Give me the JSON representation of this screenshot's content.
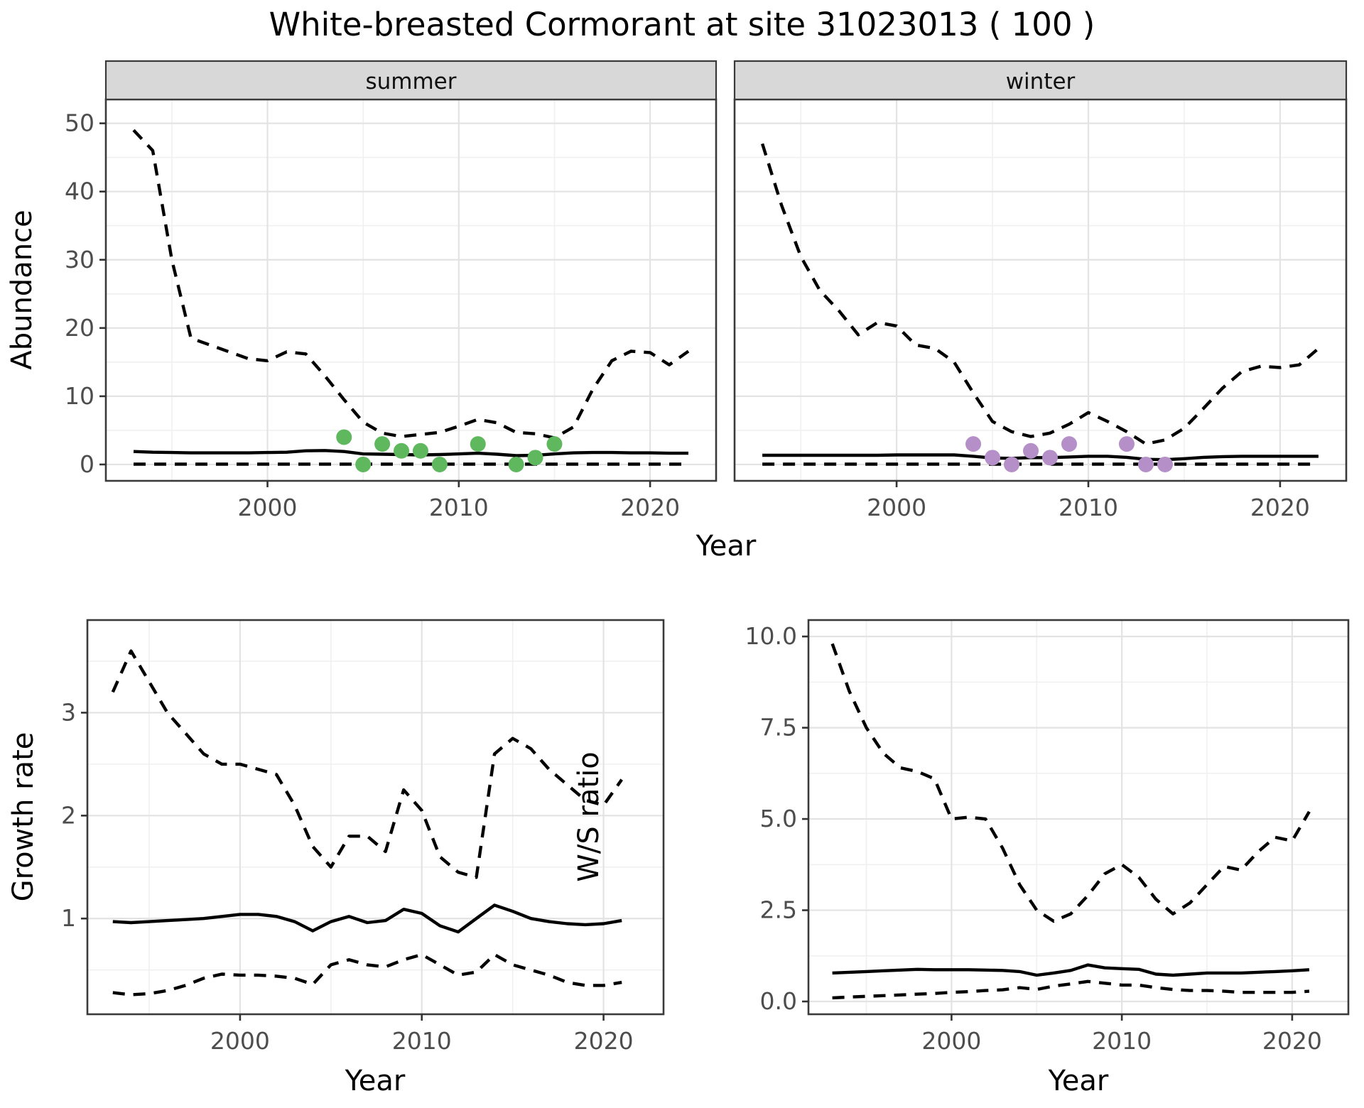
{
  "title": "White-breasted Cormorant at site 31023013 ( 100 )",
  "colors": {
    "summer_points": "#5FB75E",
    "winter_points": "#B48FC8",
    "line": "#000000",
    "grid_major": "#E3E3E3",
    "grid_minor": "#F0F0F0",
    "panel_border": "#3A3A3A",
    "strip_fill": "#D8D8D8",
    "tick_text": "#4D4D4D",
    "axis_title_text": "#000000"
  },
  "chart_data": [
    {
      "id": "abundance-summer",
      "type": "line",
      "facet_label": "summer",
      "ylabel": "Abundance",
      "xlabel": "Year",
      "legend_position": "none",
      "grid": "on",
      "xlim": [
        1991.55,
        2023.45
      ],
      "ylim": [
        -2.4,
        53.5
      ],
      "x_ticks": {
        "values": [
          2000,
          2010,
          2020
        ],
        "labels": [
          "2000",
          "2010",
          "2020"
        ]
      },
      "x_minor": [
        1995,
        2005,
        2015
      ],
      "y_ticks": {
        "values": [
          0,
          10,
          20,
          30,
          40,
          50
        ],
        "labels": [
          "0",
          "10",
          "20",
          "30",
          "40",
          "50"
        ]
      },
      "y_minor": [
        5,
        15,
        25,
        35,
        45
      ],
      "x": [
        1993,
        1994,
        1995,
        1996,
        1997,
        1998,
        1999,
        2000,
        2001,
        2002,
        2003,
        2004,
        2005,
        2006,
        2007,
        2008,
        2009,
        2010,
        2011,
        2012,
        2013,
        2014,
        2015,
        2016,
        2017,
        2018,
        2019,
        2020,
        2021,
        2022
      ],
      "series": [
        {
          "name": "upper-95ci",
          "style": "dashed",
          "values": [
            49,
            46,
            30,
            18.5,
            17.5,
            16.5,
            15.5,
            15.2,
            16.5,
            16.2,
            13,
            9.5,
            6.2,
            4.6,
            4.1,
            4.4,
            4.7,
            5.6,
            6.6,
            6.1,
            4.7,
            4.5,
            3.9,
            5.5,
            11,
            15.2,
            16.6,
            16.4,
            14.6,
            16.6
          ]
        },
        {
          "name": "mean",
          "style": "solid",
          "values": [
            1.9,
            1.8,
            1.75,
            1.7,
            1.7,
            1.7,
            1.7,
            1.75,
            1.8,
            2.0,
            2.05,
            1.9,
            1.55,
            1.5,
            1.45,
            1.4,
            1.45,
            1.55,
            1.65,
            1.5,
            1.3,
            1.35,
            1.55,
            1.7,
            1.75,
            1.75,
            1.7,
            1.7,
            1.65,
            1.65
          ]
        },
        {
          "name": "lower-95ci",
          "style": "dashed",
          "values": [
            0.05,
            0.05,
            0.05,
            0.05,
            0.05,
            0.05,
            0.05,
            0.05,
            0.05,
            0.05,
            0.05,
            0.05,
            0.05,
            0.05,
            0.05,
            0.05,
            0.05,
            0.05,
            0.05,
            0.05,
            0.05,
            0.05,
            0.05,
            0.05,
            0.05,
            0.05,
            0.05,
            0.05,
            0.05,
            0.05
          ]
        }
      ],
      "points": {
        "name": "observed-counts-summer",
        "color_key": "summer_points",
        "x": [
          2004,
          2005,
          2006,
          2007,
          2008,
          2009,
          2011,
          2013,
          2014,
          2015
        ],
        "y": [
          4,
          0,
          3,
          2,
          2,
          0,
          3,
          0,
          1,
          3
        ]
      }
    },
    {
      "id": "abundance-winter",
      "type": "line",
      "facet_label": "winter",
      "ylabel": "Abundance",
      "xlabel": "Year",
      "legend_position": "none",
      "grid": "on",
      "xlim": [
        1991.55,
        2023.45
      ],
      "ylim": [
        -2.4,
        53.5
      ],
      "x_ticks": {
        "values": [
          2000,
          2010,
          2020
        ],
        "labels": [
          "2000",
          "2010",
          "2020"
        ]
      },
      "x_minor": [
        1995,
        2005,
        2015
      ],
      "y_ticks": {
        "values": [
          0,
          10,
          20,
          30,
          40,
          50
        ],
        "labels": [
          "0",
          "10",
          "20",
          "30",
          "40",
          "50"
        ]
      },
      "y_minor": [
        5,
        15,
        25,
        35,
        45
      ],
      "x": [
        1993,
        1994,
        1995,
        1996,
        1997,
        1998,
        1999,
        2000,
        2001,
        2002,
        2003,
        2004,
        2005,
        2006,
        2007,
        2008,
        2009,
        2010,
        2011,
        2012,
        2013,
        2014,
        2015,
        2016,
        2017,
        2018,
        2019,
        2020,
        2021,
        2022
      ],
      "series": [
        {
          "name": "upper-95ci",
          "style": "dashed",
          "values": [
            47,
            38,
            30.5,
            25.5,
            22.5,
            19,
            20.8,
            20.3,
            17.5,
            17,
            15,
            10.5,
            6.3,
            4.8,
            4.1,
            4.6,
            5.9,
            7.6,
            6.3,
            4.8,
            3.0,
            3.6,
            5.3,
            8.2,
            11.2,
            13.6,
            14.4,
            14.2,
            14.6,
            17.0
          ]
        },
        {
          "name": "mean",
          "style": "solid",
          "values": [
            1.35,
            1.35,
            1.35,
            1.35,
            1.35,
            1.35,
            1.35,
            1.4,
            1.4,
            1.4,
            1.4,
            1.2,
            0.95,
            0.9,
            1.0,
            1.0,
            1.1,
            1.2,
            1.2,
            1.05,
            0.75,
            0.7,
            0.85,
            1.05,
            1.15,
            1.2,
            1.2,
            1.2,
            1.2,
            1.2
          ]
        },
        {
          "name": "lower-95ci",
          "style": "dashed",
          "values": [
            0.05,
            0.05,
            0.05,
            0.05,
            0.05,
            0.05,
            0.05,
            0.05,
            0.05,
            0.05,
            0.05,
            0.05,
            0.05,
            0.05,
            0.05,
            0.05,
            0.05,
            0.05,
            0.05,
            0.05,
            0.05,
            0.05,
            0.05,
            0.05,
            0.05,
            0.05,
            0.05,
            0.05,
            0.05,
            0.05
          ]
        }
      ],
      "points": {
        "name": "observed-counts-winter",
        "color_key": "winter_points",
        "x": [
          2004,
          2005,
          2006,
          2007,
          2008,
          2009,
          2012,
          2013,
          2014
        ],
        "y": [
          3,
          1,
          0,
          2,
          1,
          3,
          3,
          0,
          0
        ]
      }
    },
    {
      "id": "growth-rate",
      "type": "line",
      "facet_label": null,
      "ylabel": "Growth rate",
      "xlabel": "Year",
      "legend_position": "none",
      "grid": "on",
      "xlim": [
        1991.6,
        2023.3
      ],
      "ylim": [
        0.07,
        3.9
      ],
      "x_ticks": {
        "values": [
          2000,
          2010,
          2020
        ],
        "labels": [
          "2000",
          "2010",
          "2020"
        ]
      },
      "x_minor": [
        1995,
        2005,
        2015
      ],
      "y_ticks": {
        "values": [
          1,
          2,
          3
        ],
        "labels": [
          "1",
          "2",
          "3"
        ]
      },
      "y_minor": [
        0.5,
        1.5,
        2.5,
        3.5
      ],
      "x": [
        1993,
        1994,
        1995,
        1996,
        1997,
        1998,
        1999,
        2000,
        2001,
        2002,
        2003,
        2004,
        2005,
        2006,
        2007,
        2008,
        2009,
        2010,
        2011,
        2012,
        2013,
        2014,
        2015,
        2016,
        2017,
        2018,
        2019,
        2020,
        2021
      ],
      "series": [
        {
          "name": "upper-95ci",
          "style": "dashed",
          "values": [
            3.2,
            3.6,
            3.3,
            3.0,
            2.8,
            2.6,
            2.5,
            2.5,
            2.45,
            2.4,
            2.1,
            1.7,
            1.5,
            1.8,
            1.8,
            1.65,
            2.25,
            2.05,
            1.6,
            1.45,
            1.4,
            2.6,
            2.75,
            2.65,
            2.45,
            2.3,
            2.15,
            2.1,
            2.35
          ]
        },
        {
          "name": "mean",
          "style": "solid",
          "values": [
            0.97,
            0.96,
            0.97,
            0.98,
            0.99,
            1.0,
            1.02,
            1.04,
            1.04,
            1.02,
            0.97,
            0.88,
            0.97,
            1.02,
            0.96,
            0.98,
            1.09,
            1.05,
            0.93,
            0.87,
            1.0,
            1.13,
            1.07,
            1.0,
            0.97,
            0.95,
            0.94,
            0.95,
            0.98
          ]
        },
        {
          "name": "lower-95ci",
          "style": "dashed",
          "values": [
            0.28,
            0.26,
            0.27,
            0.3,
            0.35,
            0.42,
            0.46,
            0.45,
            0.45,
            0.44,
            0.42,
            0.36,
            0.55,
            0.6,
            0.55,
            0.53,
            0.6,
            0.65,
            0.55,
            0.45,
            0.48,
            0.65,
            0.55,
            0.5,
            0.45,
            0.38,
            0.35,
            0.35,
            0.38
          ]
        }
      ]
    },
    {
      "id": "ws-ratio",
      "type": "line",
      "facet_label": null,
      "ylabel": "W/S ratio",
      "xlabel": "Year",
      "legend_position": "none",
      "grid": "on",
      "xlim": [
        1991.6,
        2023.3
      ],
      "ylim": [
        -0.35,
        10.45
      ],
      "x_ticks": {
        "values": [
          2000,
          2010,
          2020
        ],
        "labels": [
          "2000",
          "2010",
          "2020"
        ]
      },
      "x_minor": [
        1995,
        2005,
        2015
      ],
      "y_ticks": {
        "values": [
          0,
          2.5,
          5,
          7.5,
          10
        ],
        "labels": [
          "0.0",
          "2.5",
          "5.0",
          "7.5",
          "10.0"
        ]
      },
      "y_minor": [
        1.25,
        3.75,
        6.25,
        8.75
      ],
      "x": [
        1993,
        1994,
        1995,
        1996,
        1997,
        1998,
        1999,
        2000,
        2001,
        2002,
        2003,
        2004,
        2005,
        2006,
        2007,
        2008,
        2009,
        2010,
        2011,
        2012,
        2013,
        2014,
        2015,
        2016,
        2017,
        2018,
        2019,
        2020,
        2021
      ],
      "series": [
        {
          "name": "upper-95ci",
          "style": "dashed",
          "values": [
            9.8,
            8.5,
            7.5,
            6.8,
            6.4,
            6.3,
            6.1,
            5.0,
            5.05,
            5.0,
            4.2,
            3.2,
            2.5,
            2.2,
            2.4,
            2.9,
            3.5,
            3.75,
            3.4,
            2.8,
            2.4,
            2.7,
            3.2,
            3.7,
            3.6,
            4.1,
            4.5,
            4.4,
            5.2
          ]
        },
        {
          "name": "mean",
          "style": "solid",
          "values": [
            0.78,
            0.8,
            0.82,
            0.84,
            0.86,
            0.88,
            0.87,
            0.87,
            0.87,
            0.86,
            0.85,
            0.82,
            0.72,
            0.78,
            0.85,
            1.0,
            0.92,
            0.9,
            0.88,
            0.75,
            0.72,
            0.75,
            0.78,
            0.78,
            0.78,
            0.8,
            0.82,
            0.84,
            0.87
          ]
        },
        {
          "name": "lower-95ci",
          "style": "dashed",
          "values": [
            0.1,
            0.12,
            0.14,
            0.16,
            0.18,
            0.2,
            0.22,
            0.25,
            0.27,
            0.3,
            0.32,
            0.38,
            0.33,
            0.42,
            0.48,
            0.55,
            0.5,
            0.45,
            0.45,
            0.38,
            0.33,
            0.3,
            0.3,
            0.28,
            0.25,
            0.25,
            0.25,
            0.25,
            0.28
          ]
        }
      ]
    }
  ],
  "axis_titles": {
    "top_x": "Year",
    "bottom_left_x": "Year",
    "bottom_right_x": "Year",
    "top_y": "Abundance",
    "bottom_left_y": "Growth rate",
    "bottom_right_y": "W/S ratio"
  },
  "facet_strips": [
    "summer",
    "winter"
  ]
}
